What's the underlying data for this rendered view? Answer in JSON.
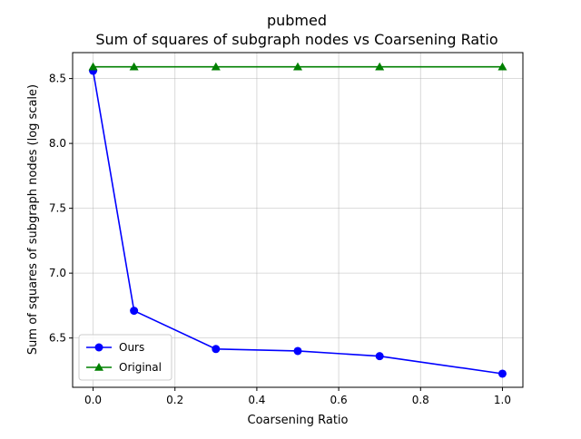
{
  "chart_data": {
    "type": "line",
    "title": "pubmed",
    "subtitle": "Sum of squares of subgraph nodes vs Coarsening Ratio",
    "xlabel": "Coarsening Ratio",
    "ylabel": "Sum of squares of subgraph nodes (log scale)",
    "xlim": [
      -0.05,
      1.05
    ],
    "ylim": [
      6.12,
      8.7
    ],
    "xticks": [
      0.0,
      0.2,
      0.4,
      0.6,
      0.8,
      1.0
    ],
    "xtick_labels": [
      "0.0",
      "0.2",
      "0.4",
      "0.6",
      "0.8",
      "1.0"
    ],
    "yticks": [
      6.5,
      7.0,
      7.5,
      8.0,
      8.5
    ],
    "ytick_labels": [
      "6.5",
      "7.0",
      "7.5",
      "8.0",
      "8.5"
    ],
    "grid": true,
    "legend_position": "lower-left",
    "series": [
      {
        "name": "Ours",
        "color": "#0000ff",
        "marker": "circle",
        "x": [
          0.0,
          0.1,
          0.3,
          0.5,
          0.7,
          1.0
        ],
        "y": [
          8.56,
          6.71,
          6.415,
          6.4,
          6.36,
          6.225
        ]
      },
      {
        "name": "Original",
        "color": "#008000",
        "marker": "triangle",
        "x": [
          0.0,
          0.1,
          0.3,
          0.5,
          0.7,
          1.0
        ],
        "y": [
          8.59,
          8.59,
          8.59,
          8.59,
          8.59,
          8.59
        ]
      }
    ]
  }
}
